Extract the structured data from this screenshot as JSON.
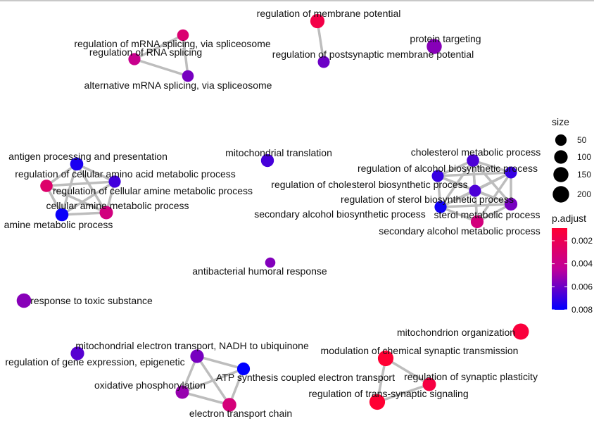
{
  "chart_data": {
    "type": "network",
    "nodes": [
      {
        "id": "regulation of membrane potential",
        "size": 120,
        "p_adjust": 0.0016
      },
      {
        "id": "regulation of postsynaptic membrane potential",
        "size": 60,
        "p_adjust": 0.006
      },
      {
        "id": "protein targeting",
        "size": 150,
        "p_adjust": 0.0055
      },
      {
        "id": "regulation of mRNA splicing, via spliceosome",
        "size": 55,
        "p_adjust": 0.003
      },
      {
        "id": "regulation of RNA splicing",
        "size": 65,
        "p_adjust": 0.004
      },
      {
        "id": "alternative mRNA splicing, via spliceosome",
        "size": 55,
        "p_adjust": 0.0058
      },
      {
        "id": "antigen processing and presentation",
        "size": 90,
        "p_adjust": 0.0075
      },
      {
        "id": "regulation of cellular amino acid metabolic process",
        "size": 70,
        "p_adjust": 0.0028
      },
      {
        "id": "regulation of cellular amine metabolic process",
        "size": 65,
        "p_adjust": 0.0068
      },
      {
        "id": "cellular amine metabolic process",
        "size": 95,
        "p_adjust": 0.0035
      },
      {
        "id": "amine metabolic process",
        "size": 90,
        "p_adjust": 0.0078
      },
      {
        "id": "mitochondrial translation",
        "size": 85,
        "p_adjust": 0.0067
      },
      {
        "id": "cholesterol metabolic process",
        "size": 70,
        "p_adjust": 0.0066
      },
      {
        "id": "regulation of alcohol biosynthetic process",
        "size": 60,
        "p_adjust": 0.007
      },
      {
        "id": "regulation of cholesterol biosynthetic process",
        "size": 60,
        "p_adjust": 0.007
      },
      {
        "id": "regulation of sterol biosynthetic process",
        "size": 60,
        "p_adjust": 0.0066
      },
      {
        "id": "secondary alcohol biosynthetic process",
        "size": 65,
        "p_adjust": 0.0077
      },
      {
        "id": "sterol metabolic process",
        "size": 80,
        "p_adjust": 0.0058
      },
      {
        "id": "secondary alcohol metabolic process",
        "size": 80,
        "p_adjust": 0.0034
      },
      {
        "id": "antibacterial humoral response",
        "size": 30,
        "p_adjust": 0.0056
      },
      {
        "id": "response to toxic substance",
        "size": 130,
        "p_adjust": 0.0055
      },
      {
        "id": "mitochondrion organization",
        "size": 190,
        "p_adjust": 0.0012
      },
      {
        "id": "mitochondrial electron transport, NADH to ubiquinone",
        "size": 100,
        "p_adjust": 0.0058
      },
      {
        "id": "regulation of gene expression, epigenetic",
        "size": 100,
        "p_adjust": 0.0064
      },
      {
        "id": "ATP synthesis coupled electron transport",
        "size": 80,
        "p_adjust": 0.008
      },
      {
        "id": "oxidative phosphorylation",
        "size": 95,
        "p_adjust": 0.0052
      },
      {
        "id": "electron transport chain",
        "size": 110,
        "p_adjust": 0.0033
      },
      {
        "id": "modulation of chemical synaptic transmission",
        "size": 170,
        "p_adjust": 0.0009
      },
      {
        "id": "regulation of synaptic plasticity",
        "size": 95,
        "p_adjust": 0.0014
      },
      {
        "id": "regulation of trans-synaptic signaling",
        "size": 170,
        "p_adjust": 0.0009
      }
    ],
    "edges": [
      [
        "regulation of membrane potential",
        "regulation of postsynaptic membrane potential"
      ],
      [
        "regulation of mRNA splicing, via spliceosome",
        "regulation of RNA splicing"
      ],
      [
        "regulation of mRNA splicing, via spliceosome",
        "alternative mRNA splicing, via spliceosome"
      ],
      [
        "regulation of RNA splicing",
        "alternative mRNA splicing, via spliceosome"
      ],
      [
        "antigen processing and presentation",
        "regulation of cellular amino acid metabolic process"
      ],
      [
        "antigen processing and presentation",
        "regulation of cellular amine metabolic process"
      ],
      [
        "antigen processing and presentation",
        "cellular amine metabolic process"
      ],
      [
        "antigen processing and presentation",
        "amine metabolic process"
      ],
      [
        "regulation of cellular amino acid metabolic process",
        "regulation of cellular amine metabolic process"
      ],
      [
        "regulation of cellular amino acid metabolic process",
        "cellular amine metabolic process"
      ],
      [
        "regulation of cellular amino acid metabolic process",
        "amine metabolic process"
      ],
      [
        "regulation of cellular amine metabolic process",
        "cellular amine metabolic process"
      ],
      [
        "regulation of cellular amine metabolic process",
        "amine metabolic process"
      ],
      [
        "cellular amine metabolic process",
        "amine metabolic process"
      ],
      [
        "cholesterol metabolic process",
        "regulation of alcohol biosynthetic process"
      ],
      [
        "cholesterol metabolic process",
        "regulation of cholesterol biosynthetic process"
      ],
      [
        "cholesterol metabolic process",
        "regulation of sterol biosynthetic process"
      ],
      [
        "cholesterol metabolic process",
        "secondary alcohol biosynthetic process"
      ],
      [
        "cholesterol metabolic process",
        "sterol metabolic process"
      ],
      [
        "cholesterol metabolic process",
        "secondary alcohol metabolic process"
      ],
      [
        "regulation of alcohol biosynthetic process",
        "regulation of cholesterol biosynthetic process"
      ],
      [
        "regulation of alcohol biosynthetic process",
        "regulation of sterol biosynthetic process"
      ],
      [
        "regulation of alcohol biosynthetic process",
        "secondary alcohol biosynthetic process"
      ],
      [
        "regulation of alcohol biosynthetic process",
        "sterol metabolic process"
      ],
      [
        "regulation of cholesterol biosynthetic process",
        "regulation of sterol biosynthetic process"
      ],
      [
        "regulation of cholesterol biosynthetic process",
        "secondary alcohol biosynthetic process"
      ],
      [
        "regulation of cholesterol biosynthetic process",
        "sterol metabolic process"
      ],
      [
        "regulation of cholesterol biosynthetic process",
        "secondary alcohol metabolic process"
      ],
      [
        "regulation of sterol biosynthetic process",
        "secondary alcohol biosynthetic process"
      ],
      [
        "regulation of sterol biosynthetic process",
        "sterol metabolic process"
      ],
      [
        "regulation of sterol biosynthetic process",
        "secondary alcohol metabolic process"
      ],
      [
        "secondary alcohol biosynthetic process",
        "sterol metabolic process"
      ],
      [
        "secondary alcohol biosynthetic process",
        "secondary alcohol metabolic process"
      ],
      [
        "sterol metabolic process",
        "secondary alcohol metabolic process"
      ],
      [
        "mitochondrial electron transport, NADH to ubiquinone",
        "ATP synthesis coupled electron transport"
      ],
      [
        "mitochondrial electron transport, NADH to ubiquinone",
        "oxidative phosphorylation"
      ],
      [
        "mitochondrial electron transport, NADH to ubiquinone",
        "electron transport chain"
      ],
      [
        "ATP synthesis coupled electron transport",
        "oxidative phosphorylation"
      ],
      [
        "ATP synthesis coupled electron transport",
        "electron transport chain"
      ],
      [
        "oxidative phosphorylation",
        "electron transport chain"
      ],
      [
        "modulation of chemical synaptic transmission",
        "regulation of synaptic plasticity"
      ],
      [
        "modulation of chemical synaptic transmission",
        "regulation of trans-synaptic signaling"
      ],
      [
        "regulation of synaptic plasticity",
        "regulation of trans-synaptic signaling"
      ]
    ],
    "legend": {
      "size": {
        "title": "size",
        "values": [
          50,
          100,
          150,
          200
        ]
      },
      "color": {
        "title": "p.adjust",
        "ticks": [
          0.002,
          0.004,
          0.006,
          0.008
        ],
        "tick_labels": [
          "0.002",
          "0.004",
          "0.006",
          "0.008"
        ],
        "low_color": "#ff0033",
        "high_color": "#0000ff"
      }
    }
  }
}
